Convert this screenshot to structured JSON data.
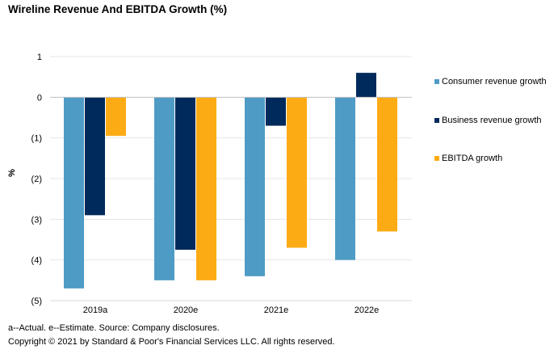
{
  "title": "Wireline Revenue And EBITDA Growth (%)",
  "footnote": "a--Actual. e--Estimate. Source: Company disclosures.",
  "copyright": "Copyright © 2021 by Standard & Poor's Financial Services LLC. All rights reserved.",
  "chart_data": {
    "type": "bar",
    "title": "Wireline Revenue And EBITDA Growth (%)",
    "xlabel": "",
    "ylabel": "%",
    "ylim": [
      -5,
      1
    ],
    "yticks": [
      1,
      0,
      -1,
      -2,
      -3,
      -4,
      -5
    ],
    "ytick_labels": [
      "1",
      "0",
      "(1)",
      "(2)",
      "(3)",
      "(4)",
      "(5)"
    ],
    "grid": true,
    "legend_position": "right",
    "categories": [
      "2019a",
      "2020e",
      "2021e",
      "2022e"
    ],
    "series": [
      {
        "name": "Consumer revenue growth",
        "color": "#4e9bc5",
        "values": [
          -4.7,
          -4.5,
          -4.4,
          -4.0
        ]
      },
      {
        "name": "Business revenue growth",
        "color": "#002a5c",
        "values": [
          -2.9,
          -3.75,
          -0.7,
          0.6
        ]
      },
      {
        "name": "EBITDA growth",
        "color": "#fdab15",
        "values": [
          -0.95,
          -4.5,
          -3.7,
          -3.3
        ]
      }
    ]
  }
}
